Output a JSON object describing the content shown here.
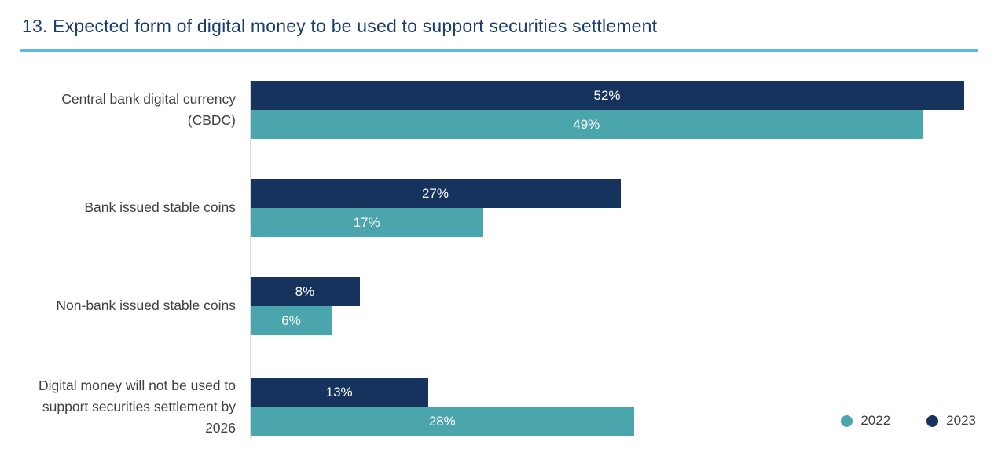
{
  "title": "13. Expected form of digital money to be used to support securities settlement",
  "colors": {
    "title_navy": "#1c3e6d",
    "rule_light_blue": "#5bbde4",
    "navy_2023": "#16335e",
    "teal_2022": "#4aa5ad",
    "label_gray": "#404040"
  },
  "legend": [
    {
      "label": "2022",
      "color": "#4aa5ad"
    },
    {
      "label": "2023",
      "color": "#16335e"
    }
  ],
  "chart_data": {
    "type": "bar",
    "orientation": "horizontal",
    "title": "13. Expected form of digital money to be used to support securities settlement",
    "categories": [
      "Central bank digital currency (CBDC)",
      "Bank issued stable coins",
      "Non-bank issued stable coins",
      "Digital money will not be used to support securities settlement by 2026"
    ],
    "series": [
      {
        "name": "2023",
        "color": "#16335e",
        "values": [
          52,
          27,
          8,
          13
        ]
      },
      {
        "name": "2022",
        "color": "#4aa5ad",
        "values": [
          49,
          17,
          6,
          28
        ]
      }
    ],
    "value_suffix": "%",
    "xlim": [
      0,
      52
    ],
    "grid": false,
    "legend_position": "bottom-right"
  }
}
